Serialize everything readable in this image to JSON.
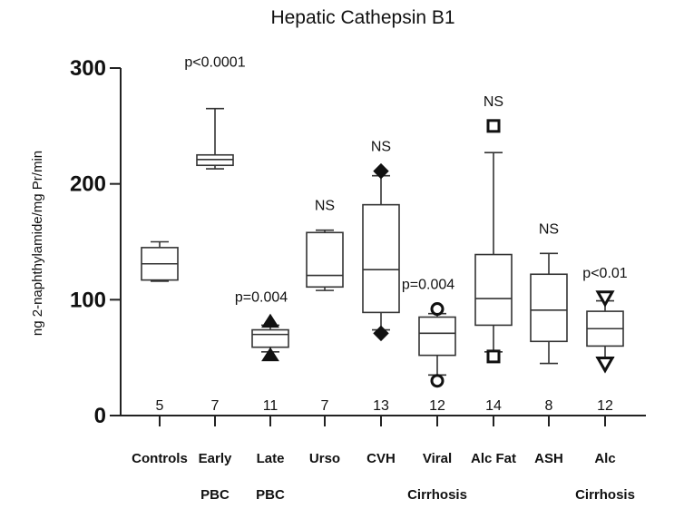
{
  "chart_data": {
    "type": "box",
    "title": "Hepatic Cathepsin B1",
    "xlabel": "",
    "ylabel": "ng 2-naphthylamide/mg Pr/min",
    "ylim": [
      0,
      300
    ],
    "yticks": [
      "0",
      "100",
      "200",
      "300"
    ],
    "grid": false,
    "categories": [
      {
        "line1": "Controls",
        "line2": "",
        "n": "5",
        "annotation": "",
        "whisker_low": 116,
        "q1": 117,
        "median": 131,
        "q3": 145,
        "whisker_high": 150,
        "marker": "none",
        "outliers": []
      },
      {
        "line1": "Early",
        "line2": "PBC",
        "n": "7",
        "annotation": "p<0.0001",
        "whisker_low": 213,
        "q1": 216,
        "median": 221,
        "q3": 225,
        "whisker_high": 265,
        "marker": "none",
        "outliers": []
      },
      {
        "line1": "Late",
        "line2": "PBC",
        "n": "11",
        "annotation": "p=0.004",
        "whisker_low": 55,
        "q1": 59,
        "median": 70,
        "q3": 74,
        "whisker_high": 78,
        "marker": "triangle-up-filled",
        "outliers": [
          52,
          81
        ]
      },
      {
        "line1": "Urso",
        "line2": "",
        "n": "7",
        "annotation": "NS",
        "whisker_low": 108,
        "q1": 111,
        "median": 121,
        "q3": 158,
        "whisker_high": 160,
        "marker": "none",
        "outliers": []
      },
      {
        "line1": "CVH",
        "line2": "",
        "n": "13",
        "annotation": "NS",
        "whisker_low": 74,
        "q1": 89,
        "median": 126,
        "q3": 182,
        "whisker_high": 207,
        "marker": "diamond-filled",
        "outliers": [
          71,
          211
        ]
      },
      {
        "line1": "Viral",
        "line2": "Cirrhosis",
        "n": "12",
        "annotation": "p=0.004",
        "whisker_low": 35,
        "q1": 52,
        "median": 71,
        "q3": 85,
        "whisker_high": 88,
        "marker": "circle-open",
        "outliers": [
          30,
          92
        ]
      },
      {
        "line1": "Alc Fat",
        "line2": "",
        "n": "14",
        "annotation": "NS",
        "whisker_low": 55,
        "q1": 78,
        "median": 101,
        "q3": 139,
        "whisker_high": 227,
        "marker": "square-open",
        "outliers": [
          51,
          250
        ]
      },
      {
        "line1": "ASH",
        "line2": "",
        "n": "8",
        "annotation": "NS",
        "whisker_low": 45,
        "q1": 64,
        "median": 91,
        "q3": 122,
        "whisker_high": 140,
        "marker": "none",
        "outliers": []
      },
      {
        "line1": "Alc",
        "line2": "Cirrhosis",
        "n": "12",
        "annotation": "p<0.01",
        "whisker_low": 50,
        "q1": 60,
        "median": 75,
        "q3": 90,
        "whisker_high": 99,
        "marker": "triangle-down-open",
        "outliers": [
          45,
          102
        ]
      }
    ]
  }
}
